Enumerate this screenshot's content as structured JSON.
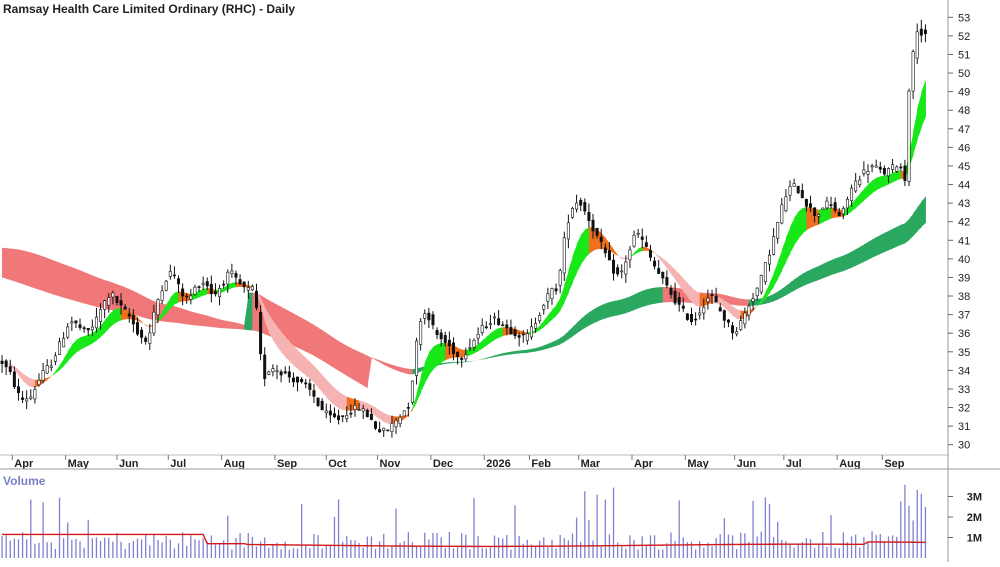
{
  "chart_data": {
    "type": "candlestick",
    "title": "Ramsay Health Care Limited Ordinary (RHC) - Daily",
    "price_axis": {
      "ylim": [
        29.5,
        53.5
      ],
      "ticks": [
        30,
        31,
        32,
        33,
        34,
        35,
        36,
        37,
        38,
        39,
        40,
        41,
        42,
        43,
        44,
        45,
        46,
        47,
        48,
        49,
        50,
        51,
        52,
        53
      ]
    },
    "x_labels": [
      "Apr",
      "May",
      "Jun",
      "Jul",
      "Aug",
      "Sep",
      "Oct",
      "Nov",
      "Dec",
      "2026",
      "Feb",
      "Mar",
      "Apr",
      "May",
      "Jun",
      "Jul",
      "Aug",
      "Sep"
    ],
    "x_label_positions": [
      0.6,
      3.2,
      5.7,
      8.2,
      10.8,
      13.4,
      15.9,
      18.4,
      21.0,
      23.6,
      25.8,
      28.2,
      30.8,
      33.4,
      35.8,
      38.2,
      40.8,
      43.0
    ],
    "price_path": [
      [
        0,
        34.6
      ],
      [
        0.5,
        33.8
      ],
      [
        1,
        32.4
      ],
      [
        1.5,
        32.6
      ],
      [
        2,
        33.7
      ],
      [
        2.5,
        34.4
      ],
      [
        3,
        35.6
      ],
      [
        3.4,
        36.7
      ],
      [
        3.8,
        36.4
      ],
      [
        4.2,
        36.0
      ],
      [
        4.6,
        36.5
      ],
      [
        5,
        37.5
      ],
      [
        5.4,
        38.2
      ],
      [
        5.8,
        37.5
      ],
      [
        6.3,
        36.9
      ],
      [
        6.8,
        35.9
      ],
      [
        7.2,
        35.5
      ],
      [
        7.6,
        37.5
      ],
      [
        8,
        38.8
      ],
      [
        8.4,
        39.4
      ],
      [
        8.8,
        38.2
      ],
      [
        9.2,
        37.8
      ],
      [
        9.6,
        38.6
      ],
      [
        10,
        38.8
      ],
      [
        10.4,
        38.0
      ],
      [
        10.8,
        38.6
      ],
      [
        11.2,
        39.3
      ],
      [
        11.6,
        38.7
      ],
      [
        12,
        38.3
      ],
      [
        12.4,
        38.4
      ],
      [
        12.6,
        36.0
      ],
      [
        12.8,
        33.5
      ],
      [
        13.2,
        34.2
      ],
      [
        13.6,
        34.0
      ],
      [
        14.2,
        33.6
      ],
      [
        14.8,
        33.2
      ],
      [
        15.2,
        32.8
      ],
      [
        15.6,
        32.0
      ],
      [
        16,
        31.5
      ],
      [
        16.5,
        31.4
      ],
      [
        17,
        31.8
      ],
      [
        17.5,
        32.0
      ],
      [
        18,
        31.5
      ],
      [
        18.4,
        30.8
      ],
      [
        18.8,
        30.7
      ],
      [
        19.2,
        31.2
      ],
      [
        19.6,
        31.7
      ],
      [
        20,
        32.3
      ],
      [
        20.2,
        34.8
      ],
      [
        20.5,
        36.8
      ],
      [
        20.8,
        37.2
      ],
      [
        21.2,
        36.0
      ],
      [
        21.6,
        35.6
      ],
      [
        22,
        35.2
      ],
      [
        22.4,
        34.6
      ],
      [
        22.8,
        35.2
      ],
      [
        23.2,
        35.8
      ],
      [
        23.6,
        36.4
      ],
      [
        24,
        36.8
      ],
      [
        24.4,
        36.6
      ],
      [
        24.8,
        36.2
      ],
      [
        25.2,
        36.0
      ],
      [
        25.6,
        35.7
      ],
      [
        26,
        36.4
      ],
      [
        26.4,
        37.4
      ],
      [
        26.8,
        38.2
      ],
      [
        27.2,
        38.5
      ],
      [
        27.6,
        41.8
      ],
      [
        27.9,
        42.8
      ],
      [
        28.2,
        43.2
      ],
      [
        28.6,
        42.4
      ],
      [
        29,
        41.4
      ],
      [
        29.4,
        40.5
      ],
      [
        29.8,
        39.5
      ],
      [
        30.2,
        39.0
      ],
      [
        30.6,
        40.2
      ],
      [
        31,
        41.5
      ],
      [
        31.4,
        40.8
      ],
      [
        31.8,
        39.8
      ],
      [
        32.2,
        39.0
      ],
      [
        32.6,
        38.3
      ],
      [
        33,
        37.6
      ],
      [
        33.4,
        37.0
      ],
      [
        33.8,
        36.6
      ],
      [
        34.2,
        37.4
      ],
      [
        34.6,
        38.1
      ],
      [
        35,
        37.4
      ],
      [
        35.4,
        36.6
      ],
      [
        35.8,
        36.0
      ],
      [
        36.2,
        36.8
      ],
      [
        36.6,
        37.8
      ],
      [
        37,
        38.6
      ],
      [
        37.4,
        40.0
      ],
      [
        37.8,
        41.5
      ],
      [
        38.2,
        43.2
      ],
      [
        38.6,
        44.0
      ],
      [
        39,
        43.6
      ],
      [
        39.4,
        42.8
      ],
      [
        39.8,
        42.3
      ],
      [
        40.2,
        43.0
      ],
      [
        40.6,
        42.8
      ],
      [
        41,
        42.2
      ],
      [
        41.4,
        43.6
      ],
      [
        41.8,
        44.3
      ],
      [
        42.2,
        44.8
      ],
      [
        42.6,
        45.0
      ],
      [
        43,
        44.6
      ],
      [
        43.4,
        44.8
      ],
      [
        43.8,
        45.2
      ],
      [
        44.1,
        44.3
      ],
      [
        44.3,
        49.2
      ],
      [
        44.5,
        51.0
      ],
      [
        44.7,
        52.4
      ],
      [
        45,
        52.0
      ],
      [
        45.3,
        51.8
      ]
    ],
    "volume_axis": {
      "ylim": [
        0,
        4000000
      ],
      "ticks": [
        1000000,
        2000000,
        3000000
      ],
      "tick_labels": [
        "1M",
        "2M",
        "3M"
      ]
    },
    "volume_label": "Volume",
    "colors": {
      "up_trend_band": "#18e818",
      "down_trend_band": "#f07878",
      "neutral_band": "#f07020",
      "long_up_band": "#2aa860",
      "short_down_band": "#f5b3b3",
      "candles": "#111111",
      "volume_bars": "#8080d0",
      "volume_avg": "#d41818",
      "grid": "#cfcfcf"
    }
  }
}
